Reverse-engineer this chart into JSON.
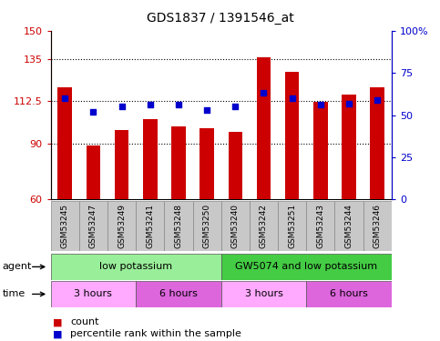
{
  "title": "GDS1837 / 1391546_at",
  "samples": [
    "GSM53245",
    "GSM53247",
    "GSM53249",
    "GSM53241",
    "GSM53248",
    "GSM53250",
    "GSM53240",
    "GSM53242",
    "GSM53251",
    "GSM53243",
    "GSM53244",
    "GSM53246"
  ],
  "counts": [
    120,
    89,
    97,
    103,
    99,
    98,
    96,
    136,
    128,
    112,
    116,
    120
  ],
  "percentiles": [
    60,
    52,
    55,
    56,
    56,
    53,
    55,
    63,
    60,
    56,
    57,
    59
  ],
  "ylim_left": [
    60,
    150
  ],
  "ylim_right": [
    0,
    100
  ],
  "yticks_left": [
    60,
    90,
    112.5,
    135,
    150
  ],
  "yticks_right": [
    0,
    25,
    50,
    75,
    100
  ],
  "bar_color": "#cc0000",
  "dot_color": "#0000cc",
  "agent_groups": [
    {
      "label": "low potassium",
      "start": 0,
      "end": 6,
      "color": "#99ee99"
    },
    {
      "label": "GW5074 and low potassium",
      "start": 6,
      "end": 12,
      "color": "#44cc44"
    }
  ],
  "time_groups": [
    {
      "label": "3 hours",
      "start": 0,
      "end": 3,
      "color": "#ffaaff"
    },
    {
      "label": "6 hours",
      "start": 3,
      "end": 6,
      "color": "#dd66dd"
    },
    {
      "label": "3 hours",
      "start": 6,
      "end": 9,
      "color": "#ffaaff"
    },
    {
      "label": "6 hours",
      "start": 9,
      "end": 12,
      "color": "#dd66dd"
    }
  ],
  "legend_count_label": "count",
  "legend_pct_label": "percentile rank within the sample",
  "grid_yticks": [
    90,
    112.5,
    135
  ],
  "bg_color": "#ffffff",
  "tick_color_left": "#cc0000",
  "tick_color_right": "#0000cc",
  "sample_box_color": "#c8c8c8",
  "bar_width": 0.5
}
